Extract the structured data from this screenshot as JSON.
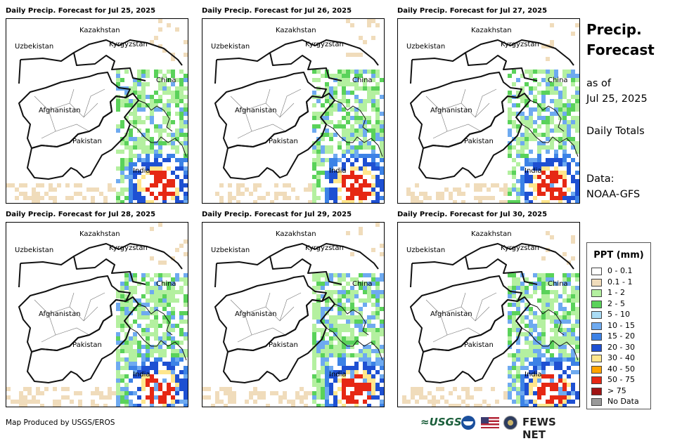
{
  "panels": [
    {
      "title": "Daily Precip. Forecast for Jul 25, 2025",
      "intensity": 1
    },
    {
      "title": "Daily Precip. Forecast for Jul 26, 2025",
      "intensity": 2
    },
    {
      "title": "Daily Precip. Forecast for Jul 27, 2025",
      "intensity": 3
    },
    {
      "title": "Daily Precip. Forecast for Jul 28, 2025",
      "intensity": 4
    },
    {
      "title": "Daily Precip. Forecast for Jul 29, 2025",
      "intensity": 5
    },
    {
      "title": "Daily Precip. Forecast for Jul 30, 2025",
      "intensity": 6
    }
  ],
  "country_labels": {
    "kazakhstan": "Kazakhstan",
    "uzbekistan": "Uzbekistan",
    "kyrgyzstan": "Kyrgyzstan",
    "china": "China",
    "afghanistan": "Afghanistan",
    "pakistan": "Pakistan",
    "india": "India"
  },
  "side": {
    "title_line1": "Precip.",
    "title_line2": "Forecast",
    "asof_line1": "as of",
    "asof_line2": "Jul 25, 2025",
    "totals": "Daily Totals",
    "data_line1": "Data:",
    "data_line2": "NOAA-GFS"
  },
  "legend": {
    "title": "PPT (mm)",
    "items": [
      {
        "label": "0 - 0.1",
        "color": "#ffffff"
      },
      {
        "label": "0.1 - 1",
        "color": "#f0dcbb"
      },
      {
        "label": "1 - 2",
        "color": "#b4f0a0"
      },
      {
        "label": "2 - 5",
        "color": "#5ad25a"
      },
      {
        "label": "5 - 10",
        "color": "#aadcf5"
      },
      {
        "label": "10 - 15",
        "color": "#6eaaf0"
      },
      {
        "label": "15 - 20",
        "color": "#3c82e6"
      },
      {
        "label": "20 - 30",
        "color": "#1e50d2"
      },
      {
        "label": "30 - 40",
        "color": "#ffe68c"
      },
      {
        "label": "40 - 50",
        "color": "#ffa500"
      },
      {
        "label": "50 - 75",
        "color": "#e62814"
      },
      {
        "label": "> 75",
        "color": "#a01414"
      },
      {
        "label": "No Data",
        "color": "#999999"
      }
    ]
  },
  "footer": {
    "credit": "Map Produced by USGS/EROS",
    "usgs": "≈USGS",
    "fewsnet": "FEWS NET"
  }
}
